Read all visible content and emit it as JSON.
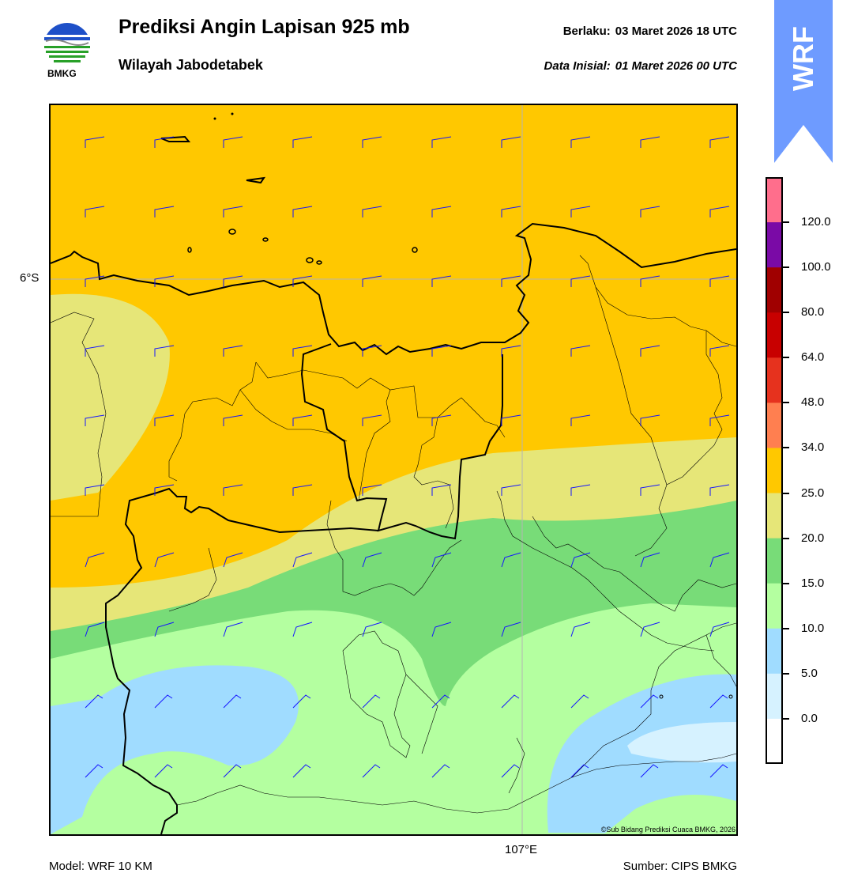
{
  "header": {
    "title": "Prediksi Angin Lapisan 925 mb",
    "subtitle": "Wilayah Jabodetabek",
    "valid_label": "Berlaku:",
    "valid_value": "03 Maret 2026 18 UTC",
    "init_label": "Data Inisial:",
    "init_value": "01 Maret 2026 00 UTC"
  },
  "logo": {
    "text": "BMKG",
    "icon": "bmkg-logo"
  },
  "badge": {
    "text": "WRF",
    "color": "#6e9bff"
  },
  "map": {
    "lat_label": "6°S",
    "lon_label": "107°E",
    "copyright": "©Sub Bidang Prediksi Cuaca BMKG, 2026"
  },
  "colorbar": {
    "ticks": [
      "120.0",
      "100.0",
      "80.0",
      "64.0",
      "48.0",
      "34.0",
      "25.0",
      "20.0",
      "15.0",
      "10.0",
      "5.0",
      "0.0"
    ],
    "colors": [
      "#ff6e8c",
      "#7a0aa6",
      "#a00000",
      "#c80000",
      "#e6321e",
      "#ff7f50",
      "#ffc800",
      "#e6e678",
      "#78dc78",
      "#b4ffa0",
      "#a0dcff",
      "#d6f2ff",
      "#ffffff"
    ]
  },
  "footer": {
    "model": "Model: WRF 10 KM",
    "source": "Sumber: CIPS BMKG"
  }
}
